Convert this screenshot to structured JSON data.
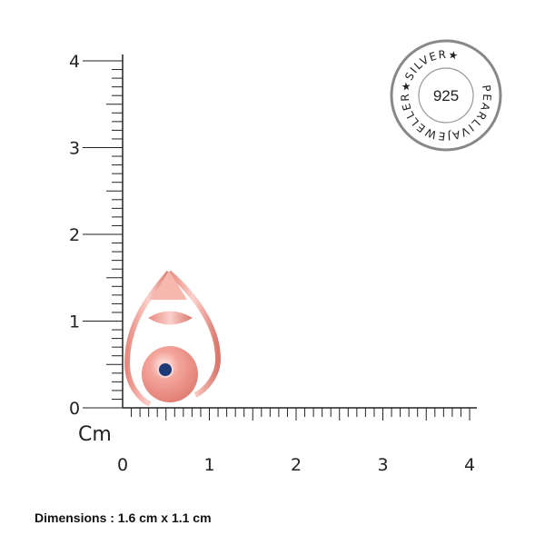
{
  "ruler": {
    "unit_label": "Cm",
    "x_labels": [
      "0",
      "1",
      "2",
      "3",
      "4"
    ],
    "y_labels": [
      "0",
      "1",
      "2",
      "3",
      "4"
    ],
    "range_cm": [
      0,
      4
    ],
    "minor_step_cm": 0.1
  },
  "seal": {
    "center_text": "925",
    "ring_text": "PEARLIVAJEWELLER★SILVER★",
    "color": "#333333"
  },
  "product": {
    "metal_color": "#f2a9a0",
    "stone_color": "#1c3a78"
  },
  "dimensions": "Dimensions : 1.6 cm x 1.1 cm"
}
